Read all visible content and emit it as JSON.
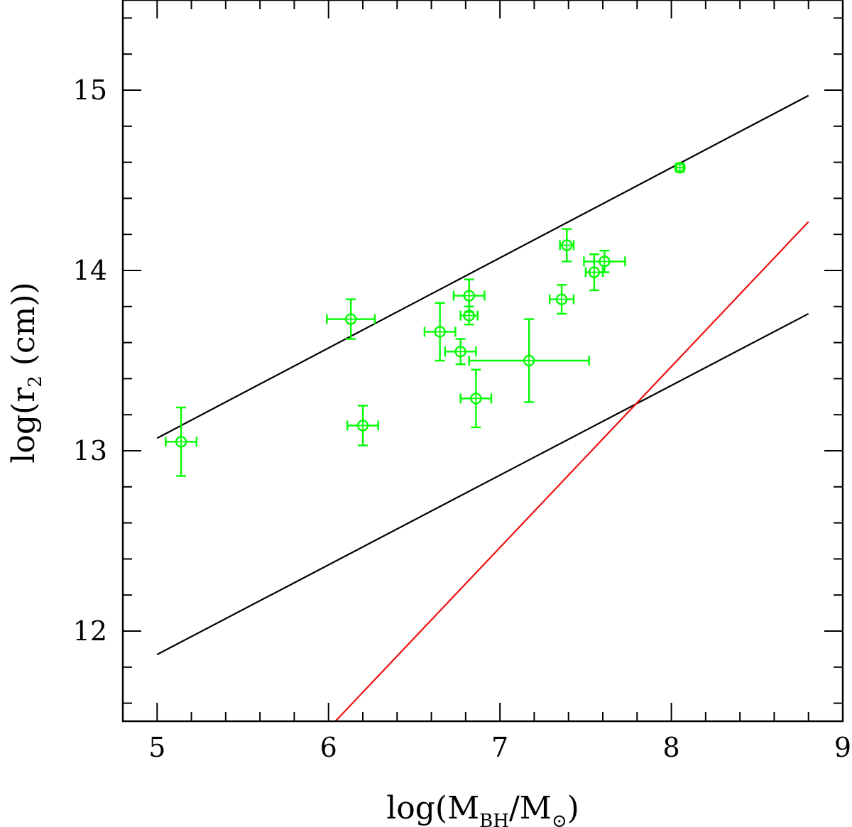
{
  "chart_data": {
    "type": "scatter",
    "title": "",
    "xlabel": {
      "prefix": "log(M",
      "sub1": "BH",
      "mid": "/M",
      "sub2": "⊙",
      "suffix": ")"
    },
    "ylabel": {
      "prefix": "log(r",
      "sub": "2",
      "suffix": "  (cm))"
    },
    "xlim": [
      4.8,
      9.0
    ],
    "ylim": [
      11.5,
      15.5
    ],
    "x_ticks_major": [
      5,
      6,
      7,
      8,
      9
    ],
    "x_tick_labels": [
      "5",
      "6",
      "7",
      "8",
      "9"
    ],
    "y_ticks_major": [
      12,
      13,
      14,
      15
    ],
    "y_tick_labels": [
      "12",
      "13",
      "14",
      "15"
    ],
    "grid": false,
    "points": [
      {
        "x": 5.14,
        "y": 13.05,
        "xerr": 0.09,
        "yerr": 0.19
      },
      {
        "x": 6.13,
        "y": 13.73,
        "xerr": 0.14,
        "yerr": 0.11
      },
      {
        "x": 6.2,
        "y": 13.14,
        "xerr": 0.09,
        "yerr": 0.11
      },
      {
        "x": 6.65,
        "y": 13.66,
        "xerr": 0.09,
        "yerr": 0.16
      },
      {
        "x": 6.77,
        "y": 13.55,
        "xerr": 0.09,
        "yerr": 0.07
      },
      {
        "x": 6.82,
        "y": 13.86,
        "xerr": 0.09,
        "yerr": 0.09
      },
      {
        "x": 6.82,
        "y": 13.75,
        "xerr": 0.05,
        "yerr": 0.05
      },
      {
        "x": 6.86,
        "y": 13.29,
        "xerr": 0.09,
        "yerr": 0.16
      },
      {
        "x": 7.17,
        "y": 13.5,
        "xerr": 0.35,
        "yerr": 0.23
      },
      {
        "x": 7.36,
        "y": 13.84,
        "xerr": 0.07,
        "yerr": 0.08
      },
      {
        "x": 7.39,
        "y": 14.14,
        "xerr": 0.04,
        "yerr": 0.09
      },
      {
        "x": 7.55,
        "y": 13.99,
        "xerr": 0.05,
        "yerr": 0.1
      },
      {
        "x": 7.61,
        "y": 14.05,
        "xerr": 0.12,
        "yerr": 0.06
      },
      {
        "x": 8.05,
        "y": 14.57,
        "xerr": 0.02,
        "yerr": 0.02
      }
    ],
    "point_color": "#00ff00",
    "lines": [
      {
        "name": "upper-black-line",
        "color": "#000000",
        "x": [
          5.0,
          8.8
        ],
        "y": [
          13.07,
          14.97
        ]
      },
      {
        "name": "lower-black-line",
        "color": "#000000",
        "x": [
          5.0,
          8.8
        ],
        "y": [
          11.87,
          13.76
        ]
      },
      {
        "name": "red-line",
        "color": "#ee1111",
        "x": [
          6.04,
          8.8
        ],
        "y": [
          11.5,
          14.27
        ]
      }
    ]
  }
}
